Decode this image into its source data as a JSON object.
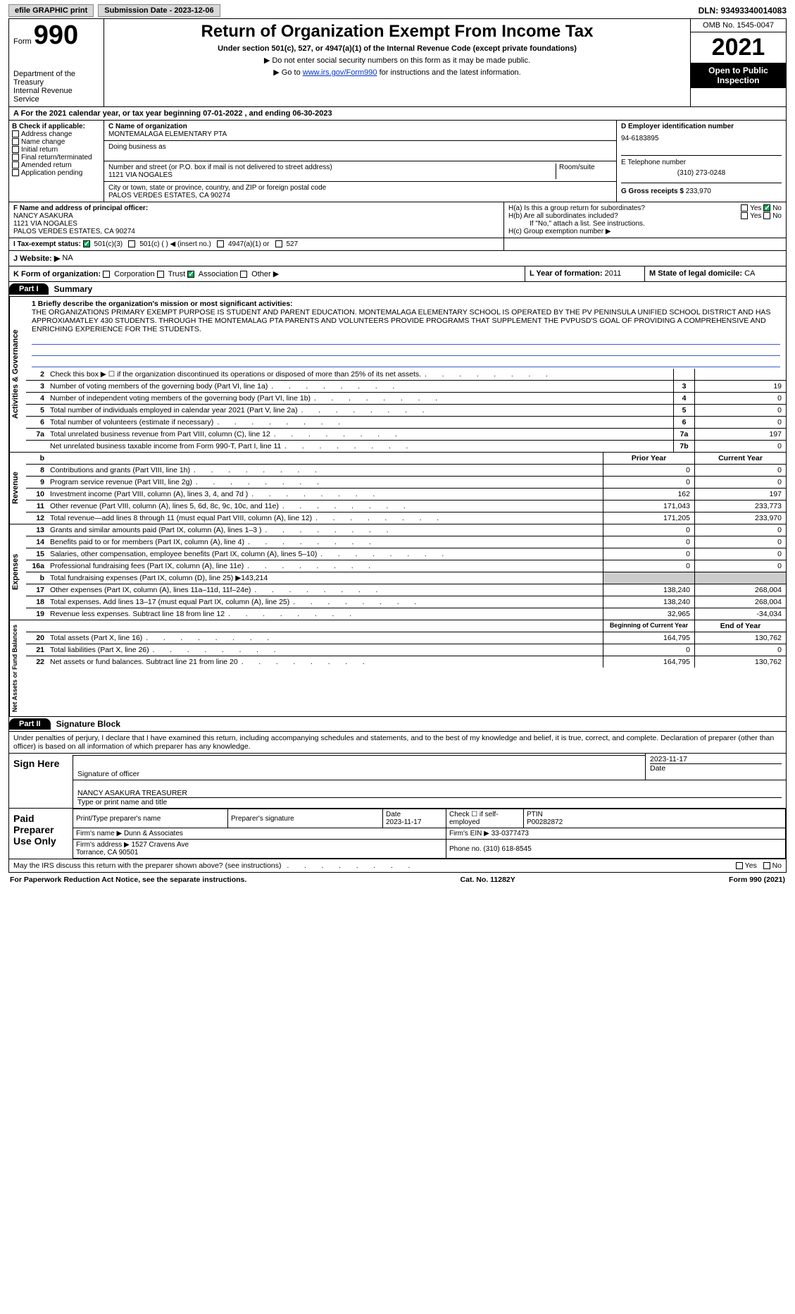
{
  "topbar": {
    "efile": "efile GRAPHIC print",
    "sub_btn": "Submission Date - 2023-12-06",
    "dln": "DLN: 93493340014083"
  },
  "header": {
    "form_label": "Form",
    "form_num": "990",
    "dept": "Department of the Treasury\nInternal Revenue Service",
    "title": "Return of Organization Exempt From Income Tax",
    "sub": "Under section 501(c), 527, or 4947(a)(1) of the Internal Revenue Code (except private foundations)",
    "note1": "▶ Do not enter social security numbers on this form as it may be made public.",
    "note2_pre": "▶ Go to ",
    "note2_link": "www.irs.gov/Form990",
    "note2_post": " for instructions and the latest information.",
    "omb": "OMB No. 1545-0047",
    "year": "2021",
    "open": "Open to Public Inspection"
  },
  "a_line": "A For the 2021 calendar year, or tax year beginning 07-01-2022     , and ending 06-30-2023",
  "b": {
    "label": "B Check if applicable:",
    "items": [
      "Address change",
      "Name change",
      "Initial return",
      "Final return/terminated",
      "Amended return",
      "Application pending"
    ]
  },
  "c": {
    "name_lbl": "C Name of organization",
    "name": "MONTEMALAGA ELEMENTARY PTA",
    "dba_lbl": "Doing business as",
    "street_lbl": "Number and street (or P.O. box if mail is not delivered to street address)",
    "street": "1121 VIA NOGALES",
    "room_lbl": "Room/suite",
    "city_lbl": "City or town, state or province, country, and ZIP or foreign postal code",
    "city": "PALOS VERDES ESTATES, CA   90274"
  },
  "d": {
    "lbl": "D Employer identification number",
    "val": "94-6183895"
  },
  "e": {
    "lbl": "E Telephone number",
    "val": "(310) 273-0248"
  },
  "g": {
    "lbl": "G Gross receipts $",
    "val": "233,970"
  },
  "f": {
    "lbl": "F  Name and address of principal officer:",
    "name": "NANCY ASAKURA",
    "addr1": "1121 VIA NOGALES",
    "addr2": "PALOS VERDES ESTATES, CA   90274"
  },
  "h": {
    "a": "H(a)   Is this a group return for subordinates?",
    "b": "H(b)   Are all subordinates included?",
    "bnote": "If \"No,\" attach a list. See instructions.",
    "c": "H(c)   Group exemption number ▶"
  },
  "i": {
    "lbl": "I    Tax-exempt status:",
    "opts": [
      "501(c)(3)",
      "501(c) (   ) ◀ (insert no.)",
      "4947(a)(1) or",
      "527"
    ]
  },
  "j": {
    "lbl": "J    Website: ▶",
    "val": "NA"
  },
  "k": {
    "lbl": "K Form of organization:",
    "opts": [
      "Corporation",
      "Trust",
      "Association",
      "Other ▶"
    ]
  },
  "l": {
    "lbl": "L Year of formation:",
    "val": "2011"
  },
  "m": {
    "lbl": "M State of legal domicile:",
    "val": "CA"
  },
  "part1": {
    "hdr": "Part I",
    "title": "Summary"
  },
  "mission": {
    "lbl": "1  Briefly describe the organization's mission or most significant activities:",
    "text": "THE ORGANIZATIONS PRIMARY EXEMPT PURPOSE IS STUDENT AND PARENT EDUCATION. MONTEMALAGA ELEMENTARY SCHOOL IS OPERATED BY THE PV PENINSULA UNIFIED SCHOOL DISTRICT AND HAS APPROXIAMATLEY 430 STUDENTS. THROUGH THE MONTEMALAG PTA PARENTS AND VOLUNTEERS PROVIDE PROGRAMS THAT SUPPLEMENT THE PVPUSD'S GOAL OF PROVIDING A COMPREHENSIVE AND ENRICHING EXPERIENCE FOR THE STUDENTS."
  },
  "sections": {
    "gov_label": "Activities & Governance",
    "gov": [
      {
        "n": "2",
        "d": "Check this box ▶ ☐  if the organization discontinued its operations or disposed of more than 25% of its net assets.",
        "code": "",
        "v": ""
      },
      {
        "n": "3",
        "d": "Number of voting members of the governing body (Part VI, line 1a)",
        "code": "3",
        "v": "19"
      },
      {
        "n": "4",
        "d": "Number of independent voting members of the governing body (Part VI, line 1b)",
        "code": "4",
        "v": "0"
      },
      {
        "n": "5",
        "d": "Total number of individuals employed in calendar year 2021 (Part V, line 2a)",
        "code": "5",
        "v": "0"
      },
      {
        "n": "6",
        "d": "Total number of volunteers (estimate if necessary)",
        "code": "6",
        "v": "0"
      },
      {
        "n": "7a",
        "d": "Total unrelated business revenue from Part VIII, column (C), line 12",
        "code": "7a",
        "v": "197"
      },
      {
        "n": "",
        "d": "Net unrelated business taxable income from Form 990-T, Part I, line 11",
        "code": "7b",
        "v": "0"
      }
    ],
    "rev_label": "Revenue",
    "rev_hdr": {
      "n": "b",
      "prior": "Prior Year",
      "cur": "Current Year"
    },
    "rev": [
      {
        "n": "8",
        "d": "Contributions and grants (Part VIII, line 1h)",
        "p": "0",
        "v": "0"
      },
      {
        "n": "9",
        "d": "Program service revenue (Part VIII, line 2g)",
        "p": "0",
        "v": "0"
      },
      {
        "n": "10",
        "d": "Investment income (Part VIII, column (A), lines 3, 4, and 7d )",
        "p": "162",
        "v": "197"
      },
      {
        "n": "11",
        "d": "Other revenue (Part VIII, column (A), lines 5, 6d, 8c, 9c, 10c, and 11e)",
        "p": "171,043",
        "v": "233,773"
      },
      {
        "n": "12",
        "d": "Total revenue—add lines 8 through 11 (must equal Part VIII, column (A), line 12)",
        "p": "171,205",
        "v": "233,970"
      }
    ],
    "exp_label": "Expenses",
    "exp": [
      {
        "n": "13",
        "d": "Grants and similar amounts paid (Part IX, column (A), lines 1–3 )",
        "p": "0",
        "v": "0"
      },
      {
        "n": "14",
        "d": "Benefits paid to or for members (Part IX, column (A), line 4)",
        "p": "0",
        "v": "0"
      },
      {
        "n": "15",
        "d": "Salaries, other compensation, employee benefits (Part IX, column (A), lines 5–10)",
        "p": "0",
        "v": "0"
      },
      {
        "n": "16a",
        "d": "Professional fundraising fees (Part IX, column (A), line 11e)",
        "p": "0",
        "v": "0"
      },
      {
        "n": "b",
        "d": "Total fundraising expenses (Part IX, column (D), line 25) ▶143,214",
        "gray": true
      },
      {
        "n": "17",
        "d": "Other expenses (Part IX, column (A), lines 11a–11d, 11f–24e)",
        "p": "138,240",
        "v": "268,004"
      },
      {
        "n": "18",
        "d": "Total expenses. Add lines 13–17 (must equal Part IX, column (A), line 25)",
        "p": "138,240",
        "v": "268,004"
      },
      {
        "n": "19",
        "d": "Revenue less expenses. Subtract line 18 from line 12",
        "p": "32,965",
        "v": "-34,034"
      }
    ],
    "net_label": "Net Assets or Fund Balances",
    "net_hdr": {
      "prior": "Beginning of Current Year",
      "cur": "End of Year"
    },
    "net": [
      {
        "n": "20",
        "d": "Total assets (Part X, line 16)",
        "p": "164,795",
        "v": "130,762"
      },
      {
        "n": "21",
        "d": "Total liabilities (Part X, line 26)",
        "p": "0",
        "v": "0"
      },
      {
        "n": "22",
        "d": "Net assets or fund balances. Subtract line 21 from line 20",
        "p": "164,795",
        "v": "130,762"
      }
    ]
  },
  "part2": {
    "hdr": "Part II",
    "title": "Signature Block"
  },
  "sig": {
    "decl": "Under penalties of perjury, I declare that I have examined this return, including accompanying schedules and statements, and to the best of my knowledge and belief, it is true, correct, and complete. Declaration of preparer (other than officer) is based on all information of which preparer has any knowledge.",
    "sign_here": "Sign Here",
    "sig_officer": "Signature of officer",
    "date_lbl": "Date",
    "date": "2023-11-17",
    "name_title": "NANCY ASAKURA  TREASURER",
    "type_lbl": "Type or print name and title",
    "paid": "Paid Preparer Use Only",
    "prep_name_lbl": "Print/Type preparer's name",
    "prep_sig_lbl": "Preparer's signature",
    "prep_date_lbl": "Date",
    "prep_date": "2023-11-17",
    "prep_chk": "Check ☐ if self-employed",
    "ptin_lbl": "PTIN",
    "ptin": "P00282872",
    "firm_lbl": "Firm's name    ▶",
    "firm": "Dunn & Associates",
    "ein_lbl": "Firm's EIN ▶",
    "ein": "33-0377473",
    "addr_lbl": "Firm's address ▶",
    "addr": "1527 Cravens Ave\n                   Torrance, CA   90501",
    "phone_lbl": "Phone no.",
    "phone": "(310) 618-8545",
    "may": "May the IRS discuss this return with the preparer shown above? (see instructions)"
  },
  "footer": {
    "left": "For Paperwork Reduction Act Notice, see the separate instructions.",
    "mid": "Cat. No. 11282Y",
    "right": "Form 990 (2021)"
  }
}
